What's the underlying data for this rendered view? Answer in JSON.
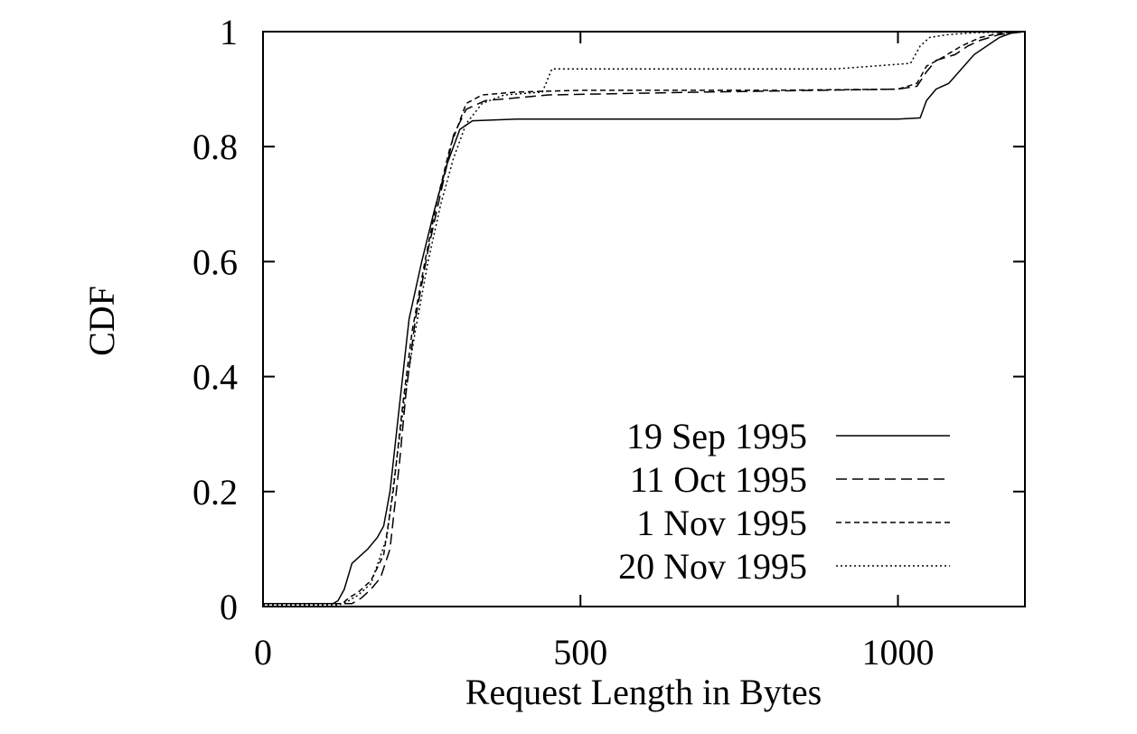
{
  "chart_data": {
    "type": "line",
    "title": "",
    "xlabel": "Request Length in Bytes",
    "ylabel": "CDF",
    "xlim": [
      0,
      1200
    ],
    "ylim": [
      0,
      1
    ],
    "xticks": [
      "0",
      "500",
      "1000"
    ],
    "yticks": [
      "0",
      "0.2",
      "0.4",
      "0.6",
      "0.8",
      "1"
    ],
    "grid": false,
    "legend_position": "bottom-right",
    "series": [
      {
        "name": "19 Sep 1995",
        "dash": "solid",
        "points": [
          [
            0,
            0.005
          ],
          [
            110,
            0.005
          ],
          [
            118,
            0.01
          ],
          [
            128,
            0.03
          ],
          [
            140,
            0.075
          ],
          [
            150,
            0.085
          ],
          [
            165,
            0.1
          ],
          [
            180,
            0.12
          ],
          [
            190,
            0.14
          ],
          [
            200,
            0.2
          ],
          [
            215,
            0.35
          ],
          [
            230,
            0.5
          ],
          [
            250,
            0.6
          ],
          [
            270,
            0.69
          ],
          [
            290,
            0.77
          ],
          [
            310,
            0.83
          ],
          [
            330,
            0.845
          ],
          [
            400,
            0.848
          ],
          [
            600,
            0.848
          ],
          [
            800,
            0.848
          ],
          [
            1000,
            0.848
          ],
          [
            1035,
            0.85
          ],
          [
            1045,
            0.88
          ],
          [
            1060,
            0.9
          ],
          [
            1080,
            0.91
          ],
          [
            1100,
            0.935
          ],
          [
            1120,
            0.96
          ],
          [
            1140,
            0.975
          ],
          [
            1160,
            0.99
          ],
          [
            1180,
            0.998
          ],
          [
            1200,
            1.0
          ]
        ]
      },
      {
        "name": "11 Oct 1995",
        "dash": "long",
        "points": [
          [
            0,
            0.005
          ],
          [
            140,
            0.005
          ],
          [
            155,
            0.015
          ],
          [
            170,
            0.03
          ],
          [
            185,
            0.05
          ],
          [
            200,
            0.1
          ],
          [
            215,
            0.25
          ],
          [
            225,
            0.37
          ],
          [
            240,
            0.5
          ],
          [
            260,
            0.62
          ],
          [
            280,
            0.72
          ],
          [
            300,
            0.82
          ],
          [
            320,
            0.865
          ],
          [
            350,
            0.88
          ],
          [
            450,
            0.89
          ],
          [
            700,
            0.895
          ],
          [
            1000,
            0.9
          ],
          [
            1030,
            0.905
          ],
          [
            1045,
            0.93
          ],
          [
            1060,
            0.95
          ],
          [
            1090,
            0.96
          ],
          [
            1110,
            0.975
          ],
          [
            1130,
            0.985
          ],
          [
            1160,
            0.995
          ],
          [
            1200,
            1.0
          ]
        ]
      },
      {
        "name": "1 Nov 1995",
        "dash": "short",
        "points": [
          [
            0,
            0.005
          ],
          [
            125,
            0.005
          ],
          [
            135,
            0.015
          ],
          [
            150,
            0.025
          ],
          [
            170,
            0.045
          ],
          [
            190,
            0.09
          ],
          [
            205,
            0.2
          ],
          [
            220,
            0.35
          ],
          [
            235,
            0.48
          ],
          [
            255,
            0.6
          ],
          [
            275,
            0.71
          ],
          [
            295,
            0.8
          ],
          [
            320,
            0.875
          ],
          [
            345,
            0.89
          ],
          [
            400,
            0.895
          ],
          [
            500,
            0.898
          ],
          [
            800,
            0.898
          ],
          [
            1000,
            0.9
          ],
          [
            1030,
            0.91
          ],
          [
            1045,
            0.94
          ],
          [
            1070,
            0.955
          ],
          [
            1100,
            0.975
          ],
          [
            1130,
            0.99
          ],
          [
            1160,
            0.997
          ],
          [
            1200,
            1.0
          ]
        ]
      },
      {
        "name": "20 Nov 1995",
        "dash": "dot",
        "points": [
          [
            0,
            0.003
          ],
          [
            120,
            0.003
          ],
          [
            135,
            0.01
          ],
          [
            150,
            0.02
          ],
          [
            170,
            0.04
          ],
          [
            195,
            0.12
          ],
          [
            210,
            0.25
          ],
          [
            225,
            0.38
          ],
          [
            240,
            0.48
          ],
          [
            260,
            0.6
          ],
          [
            280,
            0.7
          ],
          [
            300,
            0.78
          ],
          [
            320,
            0.84
          ],
          [
            345,
            0.875
          ],
          [
            380,
            0.89
          ],
          [
            440,
            0.895
          ],
          [
            455,
            0.935
          ],
          [
            700,
            0.935
          ],
          [
            900,
            0.935
          ],
          [
            1020,
            0.945
          ],
          [
            1035,
            0.975
          ],
          [
            1050,
            0.99
          ],
          [
            1080,
            0.995
          ],
          [
            1120,
            0.998
          ],
          [
            1200,
            1.0
          ]
        ]
      }
    ]
  }
}
